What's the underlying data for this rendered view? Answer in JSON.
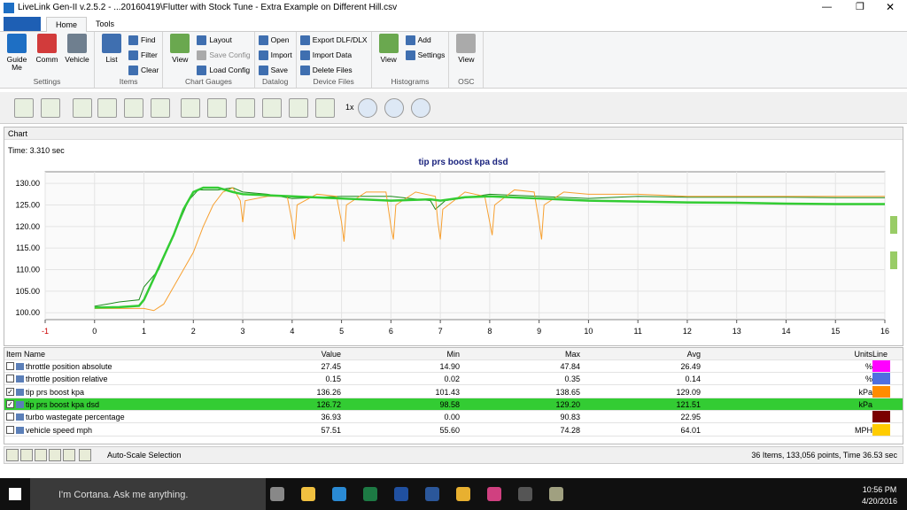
{
  "window": {
    "title": "LiveLink Gen-II  v.2.5.2 - ...20160419\\Flutter with Stock Tune - Extra Example on Different Hill.csv",
    "tabs": [
      "Home",
      "Tools"
    ]
  },
  "ribbon": {
    "groups": [
      {
        "label": "Settings",
        "items": [
          {
            "label": "Guide Me",
            "size": "large",
            "color": "#1e6fc4"
          },
          {
            "label": "Comm",
            "size": "large",
            "color": "#d23b3b"
          },
          {
            "label": "Vehicle",
            "size": "large",
            "color": "#6f7f8f"
          }
        ]
      },
      {
        "label": "Items",
        "items": [
          {
            "label": "List",
            "size": "large",
            "color": "#3f6fb0"
          },
          {
            "label": "Find",
            "size": "small",
            "color": "#3f6fb0"
          },
          {
            "label": "Filter",
            "size": "small",
            "color": "#3f6fb0"
          },
          {
            "label": "Clear",
            "size": "small",
            "color": "#3f6fb0"
          }
        ]
      },
      {
        "label": "Chart Gauges",
        "items": [
          {
            "label": "View",
            "size": "large",
            "color": "#6aa84f"
          },
          {
            "label": "Layout",
            "size": "small",
            "color": "#3f6fb0"
          },
          {
            "label": "Save Config",
            "size": "small",
            "color": "#aaaaaa"
          },
          {
            "label": "Load Config",
            "size": "small",
            "color": "#3f6fb0"
          }
        ]
      },
      {
        "label": "Datalog",
        "items": [
          {
            "label": "Open",
            "size": "small",
            "color": "#3f6fb0"
          },
          {
            "label": "Import",
            "size": "small",
            "color": "#3f6fb0"
          },
          {
            "label": "Save",
            "size": "small",
            "color": "#3f6fb0"
          }
        ]
      },
      {
        "label": "Device Files",
        "items": [
          {
            "label": "Export DLF/DLX",
            "size": "small",
            "color": "#3f6fb0"
          },
          {
            "label": "Import Data",
            "size": "small",
            "color": "#3f6fb0"
          },
          {
            "label": "Delete Files",
            "size": "small",
            "color": "#3f6fb0"
          }
        ]
      },
      {
        "label": "Histograms",
        "items": [
          {
            "label": "View",
            "size": "large",
            "color": "#6aa84f"
          },
          {
            "label": "Add",
            "size": "small",
            "color": "#3f6fb0"
          },
          {
            "label": "Settings",
            "size": "small",
            "color": "#3f6fb0"
          }
        ]
      },
      {
        "label": "OSC",
        "items": [
          {
            "label": "View",
            "size": "large",
            "color": "#aaaaaa"
          }
        ]
      }
    ]
  },
  "toolbar": {
    "speed": "1x"
  },
  "chart_panel": {
    "header": "Chart",
    "time": "Time: 3.310 sec"
  },
  "chart_data": {
    "type": "line",
    "title": "tip prs boost kpa dsd",
    "xlim": [
      -1,
      16
    ],
    "xticks": [
      -1,
      0,
      1,
      2,
      3,
      4,
      5,
      6,
      7,
      8,
      9,
      10,
      11,
      12,
      13,
      14,
      15,
      16
    ],
    "ylim": [
      98.4,
      132.7
    ],
    "yticks": [
      {
        "value": 100,
        "label": "100.00"
      },
      {
        "value": 105,
        "label": "105.00"
      },
      {
        "value": 110,
        "label": "110.00"
      },
      {
        "value": 115,
        "label": "115.00"
      },
      {
        "value": 120,
        "label": "120.00"
      },
      {
        "value": 125,
        "label": "125.00"
      },
      {
        "value": 130,
        "label": "130.00"
      }
    ],
    "grid": true,
    "series": [
      {
        "color": "#1a8a1a",
        "width": 1,
        "x": [
          0,
          0.5,
          0.9,
          1.0,
          1.3,
          1.6,
          1.9,
          2.1,
          2.5,
          2.8,
          3,
          3.5,
          4,
          5,
          6,
          6.8,
          6.9,
          7.1,
          8,
          9,
          10,
          11,
          12,
          13,
          14,
          15,
          16
        ],
        "values": [
          101.5,
          102.5,
          103,
          106,
          110,
          118,
          126,
          128.5,
          128.5,
          129,
          128,
          127.5,
          126.5,
          127,
          127,
          126,
          124,
          126,
          127.5,
          127,
          126.5,
          127,
          126.8,
          126.8,
          126.8,
          126.7,
          126.7
        ]
      },
      {
        "name": "tip prs boost kpa",
        "color": "#f7a030",
        "width": 1,
        "x": [
          0,
          1.0,
          1.2,
          1.4,
          1.6,
          1.8,
          2.0,
          2.2,
          2.4,
          2.6,
          2.8,
          2.95,
          3.0,
          3.05,
          3.5,
          3.9,
          4.0,
          4.05,
          4.1,
          4.5,
          4.9,
          5.0,
          5.05,
          5.1,
          5.5,
          5.9,
          6.0,
          6.05,
          6.1,
          6.5,
          6.9,
          6.95,
          7.0,
          7.05,
          7.5,
          7.9,
          8.0,
          8.05,
          8.1,
          8.5,
          8.9,
          9.0,
          9.05,
          9.1,
          9.5,
          10,
          11,
          12,
          13,
          14,
          15,
          16
        ],
        "values": [
          101,
          101,
          100.5,
          102,
          106,
          110,
          114,
          120,
          125,
          128,
          129,
          126,
          121,
          126,
          127,
          127,
          121,
          117,
          125,
          127.5,
          127,
          121,
          116.5,
          125,
          128,
          128,
          120,
          117,
          125,
          128,
          127,
          121,
          117,
          124,
          128,
          127,
          121,
          118,
          125,
          128.5,
          128,
          121,
          117,
          125,
          128,
          127.5,
          127.5,
          127,
          127,
          127,
          127,
          127
        ]
      },
      {
        "name": "tip prs boost kpa dsd",
        "color": "#33cc33",
        "width": 2.5,
        "x": [
          0,
          0.5,
          0.9,
          1.0,
          1.2,
          1.4,
          1.6,
          1.8,
          2.0,
          2.2,
          2.5,
          2.8,
          3.0,
          4,
          5,
          6,
          6.8,
          7.0,
          7.5,
          8,
          9,
          10,
          11,
          12,
          13,
          14,
          15,
          16
        ],
        "values": [
          101.2,
          101.3,
          101.6,
          103,
          108,
          113,
          118,
          124,
          128,
          129,
          129,
          128,
          127.5,
          127,
          126.5,
          126,
          126.3,
          126,
          126.8,
          127,
          126.5,
          126,
          125.8,
          125.6,
          125.5,
          125.3,
          125.2,
          125.2
        ]
      }
    ]
  },
  "table": {
    "columns": [
      "Item Name",
      "Value",
      "Min",
      "Max",
      "Avg",
      "Units",
      "Line"
    ],
    "rows": [
      {
        "name": "throttle position absolute",
        "value": "27.45",
        "min": "14.90",
        "max": "47.84",
        "avg": "26.49",
        "units": "%",
        "color": "#ff00ff",
        "checked": false
      },
      {
        "name": "throttle position relative",
        "value": "0.15",
        "min": "0.02",
        "max": "0.35",
        "avg": "0.14",
        "units": "%",
        "color": "#4f6fe0",
        "checked": false
      },
      {
        "name": "tip prs boost kpa",
        "value": "136.26",
        "min": "101.43",
        "max": "138.65",
        "avg": "129.09",
        "units": "kPa",
        "color": "#ff8c00",
        "checked": true
      },
      {
        "name": "tip prs boost kpa dsd",
        "value": "126.72",
        "min": "98.58",
        "max": "129.20",
        "avg": "121.51",
        "units": "kPa",
        "color": "#33cc33",
        "checked": true,
        "selected": true
      },
      {
        "name": "turbo wastegate percentage",
        "value": "36.93",
        "min": "0.00",
        "max": "90.83",
        "avg": "22.95",
        "color": "#7a0000",
        "checked": false
      },
      {
        "name": "vehicle speed mph",
        "value": "57.51",
        "min": "55.60",
        "max": "74.28",
        "avg": "64.01",
        "units": "MPH",
        "color": "#ffcc00",
        "checked": false
      }
    ]
  },
  "status": {
    "button": "Auto-Scale Selection",
    "summary": "36 Items, 133,056 points, Time 36.53 sec"
  },
  "taskbar": {
    "search": "I'm Cortana. Ask me anything.",
    "time": "10:56 PM",
    "date": "4/20/2016"
  }
}
